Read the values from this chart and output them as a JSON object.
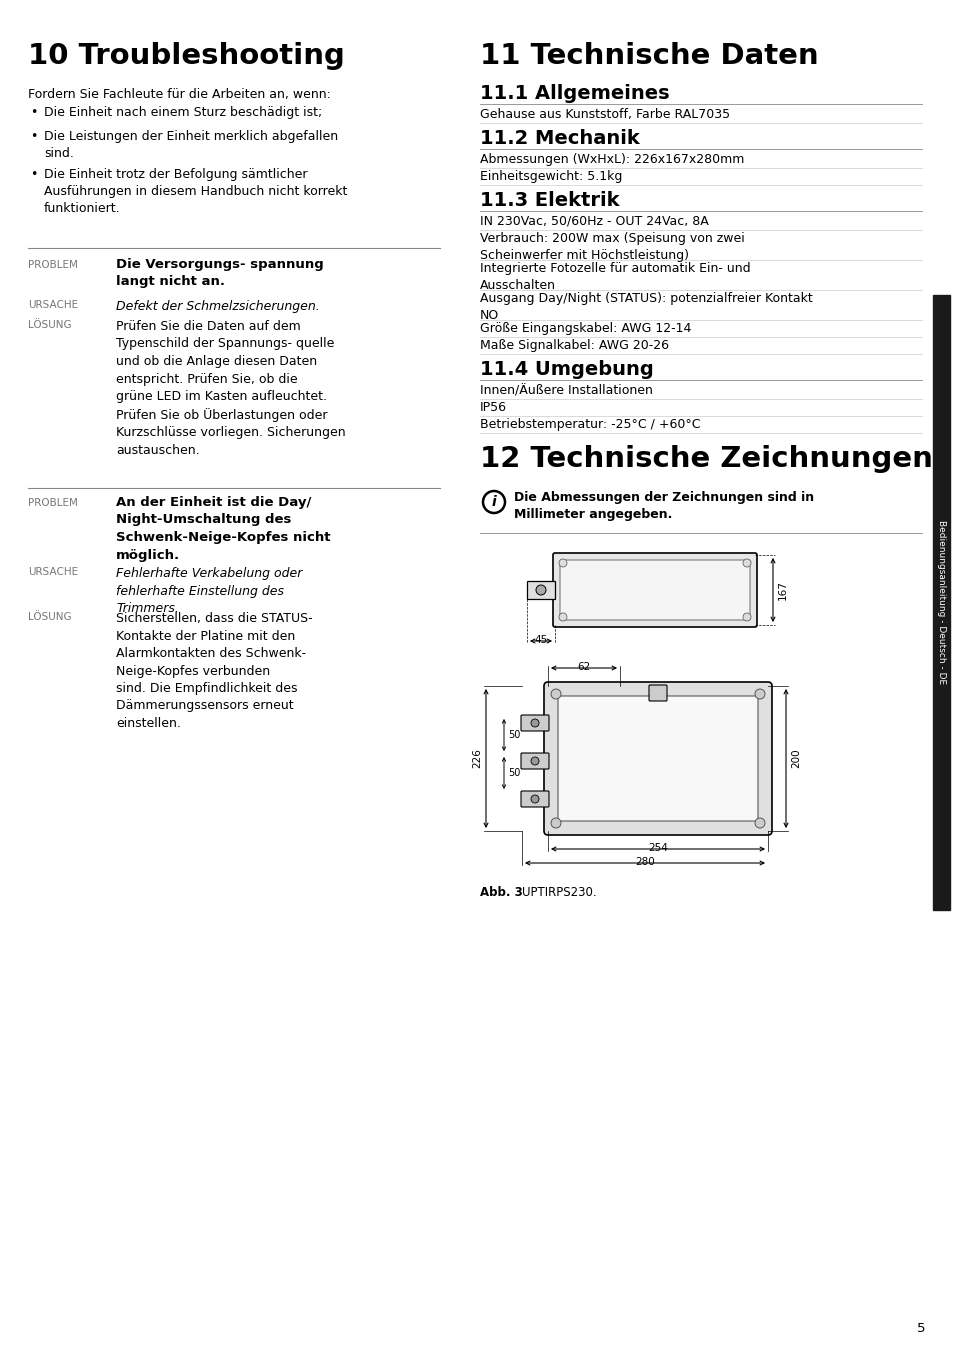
{
  "page_bg": "#ffffff",
  "sidebar_text": "Bedienungsanleitung - Deutsch - DE",
  "page_number": "5",
  "left_title": "10 Troubleshooting",
  "left_intro": "Fordern Sie Fachleute für die Arbeiten an, wenn:",
  "bullets": [
    "Die Einheit nach einem Sturz beschädigt ist;",
    "Die Leistungen der Einheit merklich abgefallen\nsind.",
    "Die Einheit trotz der Befolgung sämtlicher\nAusführungen in diesem Handbuch nicht korrekt\nfunktioniert."
  ],
  "p1_problem": "Die Versorgungs- spannung\nlangt nicht an.",
  "p1_ursache": "Defekt der Schmelzsicherungen.",
  "p1_loesung": "Prüfen Sie die Daten auf dem\nTypenschild der Spannungs- quelle\nund ob die Anlage diesen Daten\nentspricht. Prüfen Sie, ob die\ngrüne LED im Kasten aufleuchtet.\nPrüfen Sie ob Überlastungen oder\nKurzschlüsse vorliegen. Sicherungen\naustauschen.",
  "p2_problem": "An der Einheit ist die Day/\nNight-Umschaltung des\nSchwenk-Neige-Kopfes nicht\nmöglich.",
  "p2_ursache": "Fehlerhafte Verkabelung oder\nfehlerhafte Einstellung des\nTrimmers.",
  "p2_loesung": "Sicherstellen, dass die STATUS-\nKontakte der Platine mit den\nAlarmkontakten des Schwenk-\nNeige-Kopfes verbunden\nsind. Die Empfindlichkeit des\nDämmerungssensors erneut\neinstellen.",
  "right_title": "11 Technische Daten",
  "s111_head": "11.1 Allgemeines",
  "s111_items": [
    "Gehause aus Kunststoff, Farbe RAL7035"
  ],
  "s112_head": "11.2 Mechanik",
  "s112_items": [
    "Abmessungen (WxHxL): 226x167x280mm",
    "Einheitsgewicht: 5.1kg"
  ],
  "s113_head": "11.3 Elektrik",
  "s113_items": [
    "IN 230Vac, 50/60Hz - OUT 24Vac, 8A",
    "Verbrauch: 200W max (Speisung von zwei\nScheinwerfer mit Höchstleistung)",
    "Integrierte Fotozelle für automatik Ein- und\nAusschalten",
    "Ausgang Day/Night (STATUS): potenzialfreier Kontakt\nNO",
    "Größe Eingangskabel: AWG 12-14",
    "Maße Signalkabel: AWG 20-26"
  ],
  "s114_head": "11.4 Umgebung",
  "s114_items": [
    "Innen/Äußere Installationen",
    "IP56",
    "Betriebstemperatur: -25°C / +60°C"
  ],
  "s12_title": "12 Technische Zeichnungen",
  "s12_info": "Die Abmessungen der Zeichnungen sind in\nMillimeter angegeben.",
  "caption_bold": "Abb. 3",
  "caption_normal": "      UPTIRPS230."
}
